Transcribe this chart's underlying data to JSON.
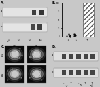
{
  "figure_bg": "#c8c8c8",
  "panel_bg": "#c8c8c8",
  "blot_bg": "#d4d4d4",
  "blot_inner": "#e8e8e8",
  "band_dark": "#222222",
  "band_med": "#444444",
  "title_a": "A.",
  "title_b": "B.",
  "title_c": "C.",
  "title_d": "D.",
  "bar_face": "#ffffff",
  "bar_edge": "#555555",
  "micro_bg": "#0a0a0a",
  "micro_glow": "#cccccc"
}
